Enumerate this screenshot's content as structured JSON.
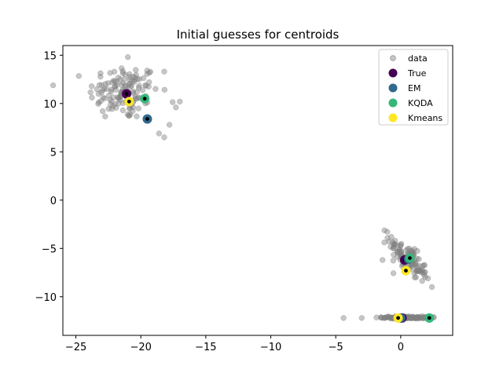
{
  "chart_data": {
    "type": "scatter",
    "title": "Initial guesses for centroids",
    "xlabel": "",
    "ylabel": "",
    "xlim": [
      -26,
      4
    ],
    "ylim": [
      -14,
      16
    ],
    "xticks": [
      -25,
      -20,
      -15,
      -10,
      -5,
      0
    ],
    "yticks": [
      -10,
      -5,
      0,
      5,
      10,
      15
    ],
    "grid": false,
    "legend_position": "top-right",
    "clusters": [
      {
        "cx": -21.3,
        "cy": 11.2,
        "sx": 1.35,
        "sy": 1.45,
        "n": 140
      },
      {
        "cx": 0.6,
        "cy": -6.1,
        "sx": 0.75,
        "sy": 1.15,
        "n": 110,
        "corr": -0.8
      },
      {
        "cx": 0.4,
        "cy": -12.15,
        "sx": 0.9,
        "sy": 0.06,
        "n": 110
      }
    ],
    "outliers": [
      [
        -18.2,
        6.5
      ],
      [
        -17.8,
        7.8
      ],
      [
        -18.6,
        6.9
      ],
      [
        -18.2,
        13.3
      ],
      [
        -17.3,
        9.6
      ],
      [
        -17.0,
        10.2
      ],
      [
        -21.0,
        14.8
      ],
      [
        -4.4,
        -12.2
      ],
      [
        -3.0,
        -12.2
      ],
      [
        2.4,
        -9.0
      ],
      [
        2.1,
        -8.1
      ],
      [
        -0.9,
        -4.3
      ],
      [
        -1.4,
        -6.2
      ]
    ],
    "series": [
      {
        "name": "data",
        "color": "#808080",
        "opacity": 0.45,
        "marker": "small-circle"
      },
      {
        "name": "True",
        "color": "#440154",
        "marker": "large-circle",
        "points": [
          [
            -21.1,
            11.0
          ],
          [
            0.3,
            -6.2
          ],
          [
            0.1,
            -12.2
          ]
        ]
      },
      {
        "name": "EM",
        "color": "#31688e",
        "marker": "large-circle",
        "points": [
          [
            -19.5,
            8.4
          ],
          [
            0.6,
            -6.1
          ],
          [
            0.0,
            -12.2
          ]
        ]
      },
      {
        "name": "KQDA",
        "color": "#35b779",
        "marker": "large-circle",
        "points": [
          [
            -19.7,
            10.5
          ],
          [
            0.7,
            -6.0
          ],
          [
            2.2,
            -12.2
          ]
        ]
      },
      {
        "name": "Kmeans",
        "color": "#fde725",
        "marker": "large-circle",
        "points": [
          [
            -20.9,
            10.2
          ],
          [
            0.4,
            -7.3
          ],
          [
            -0.2,
            -12.2
          ]
        ]
      }
    ],
    "inner_dot_color": "#000000"
  }
}
